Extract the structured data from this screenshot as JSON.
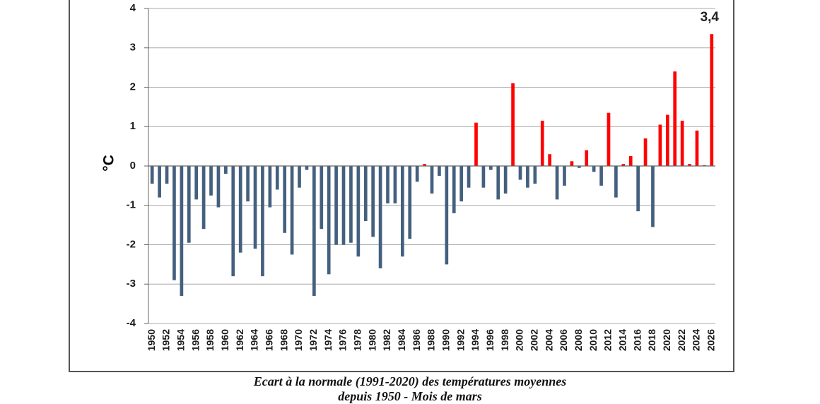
{
  "chart_data": {
    "type": "bar",
    "title": "",
    "xlabel": "",
    "ylabel": "°C",
    "ylim": [
      -4,
      4
    ],
    "yticks": [
      4,
      3,
      2,
      1,
      0,
      -1,
      -2,
      -3,
      -4
    ],
    "grid": true,
    "colors": {
      "positive": "#ff0000",
      "negative": "#44607e",
      "grid": "#a8a8a8",
      "axis": "#666666"
    },
    "categories": [
      1950,
      1951,
      1952,
      1953,
      1954,
      1955,
      1956,
      1957,
      1958,
      1959,
      1960,
      1961,
      1962,
      1963,
      1964,
      1965,
      1966,
      1967,
      1968,
      1969,
      1970,
      1971,
      1972,
      1973,
      1974,
      1975,
      1976,
      1977,
      1978,
      1979,
      1980,
      1981,
      1982,
      1983,
      1984,
      1985,
      1986,
      1987,
      1988,
      1989,
      1990,
      1991,
      1992,
      1993,
      1994,
      1995,
      1996,
      1997,
      1998,
      1999,
      2000,
      2001,
      2002,
      2003,
      2004,
      2005,
      2006,
      2007,
      2008,
      2009,
      2010,
      2011,
      2012,
      2013,
      2014,
      2015,
      2016,
      2017,
      2018,
      2019,
      2020,
      2021,
      2022,
      2023,
      2024,
      2025,
      2026
    ],
    "values": [
      -0.45,
      -0.8,
      -0.45,
      -2.9,
      -3.3,
      -1.95,
      -0.85,
      -1.6,
      -0.75,
      -1.05,
      -0.2,
      -2.8,
      -2.2,
      -0.9,
      -2.1,
      -2.8,
      -1.05,
      -0.6,
      -1.7,
      -2.25,
      -0.55,
      -0.1,
      -3.3,
      -1.6,
      -2.75,
      -2.0,
      -2.0,
      -1.95,
      -2.3,
      -1.4,
      -1.8,
      -2.6,
      -0.95,
      -0.95,
      -2.3,
      -1.85,
      -0.4,
      0.05,
      -0.7,
      -0.25,
      -2.5,
      -1.2,
      -0.9,
      -0.55,
      1.1,
      -0.55,
      -0.1,
      -0.85,
      -0.7,
      2.1,
      -0.35,
      -0.55,
      -0.45,
      1.15,
      0.3,
      -0.85,
      -0.5,
      0.12,
      -0.05,
      0.4,
      -0.15,
      -0.5,
      1.35,
      -0.8,
      0.05,
      0.25,
      -1.15,
      0.7,
      -1.55,
      1.05,
      1.3,
      2.4,
      1.15,
      0.05,
      0.9,
      0.02,
      3.35
    ],
    "xtick_labels": [
      "1950",
      "1952",
      "1954",
      "1956",
      "1958",
      "1960",
      "1962",
      "1964",
      "1966",
      "1968",
      "1970",
      "1972",
      "1974",
      "1976",
      "1978",
      "1980",
      "1982",
      "1984",
      "1986",
      "1988",
      "1990",
      "1992",
      "1994",
      "1996",
      "1998",
      "2000",
      "2002",
      "2004",
      "2006",
      "2008",
      "2010",
      "2012",
      "2014",
      "2016",
      "2018",
      "2020",
      "2022",
      "2024",
      "2026"
    ],
    "annotations": [
      {
        "category": 2026,
        "text": "3,4"
      }
    ]
  },
  "caption": {
    "line1": "Ecart à la normale (1991-2020) des températures moyennes",
    "line2": "depuis 1950 - Mois de mars"
  }
}
